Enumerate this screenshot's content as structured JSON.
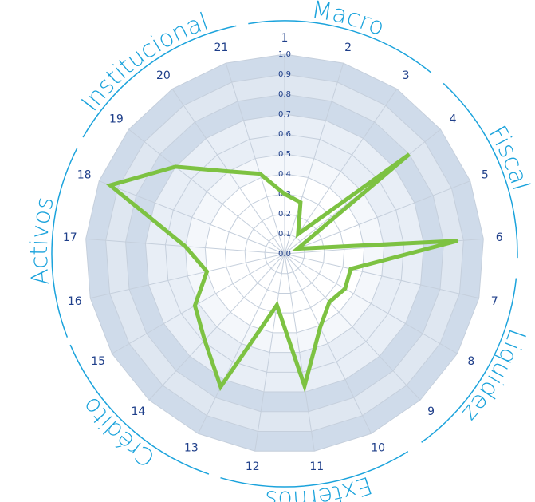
{
  "chart_data": {
    "type": "radar",
    "categories": [
      "1",
      "2",
      "3",
      "4",
      "5",
      "6",
      "7",
      "8",
      "9",
      "10",
      "11",
      "12",
      "13",
      "14",
      "15",
      "16",
      "17",
      "18",
      "19",
      "20",
      "21"
    ],
    "series": [
      {
        "color": "#7dc242",
        "values": [
          0.3,
          0.27,
          0.12,
          0.8,
          0.07,
          0.87,
          0.34,
          0.35,
          0.33,
          0.41,
          0.67,
          0.26,
          0.74,
          0.59,
          0.52,
          0.4,
          0.5,
          0.94,
          0.7,
          0.5,
          0.42
        ]
      }
    ],
    "ylim": [
      0,
      1
    ],
    "yticks": [
      {
        "value": 0,
        "label": "0.0"
      },
      0.1,
      0.2,
      0.3,
      0.4,
      0.5,
      0.6,
      0.7,
      0.8,
      0.9,
      {
        "value": 1,
        "label": "1.0"
      }
    ],
    "grid": true,
    "groups": [
      "Macro",
      "Fiscal",
      "Liquidez",
      "Externos",
      "Crédito",
      "Activos",
      "Institucional"
    ]
  }
}
